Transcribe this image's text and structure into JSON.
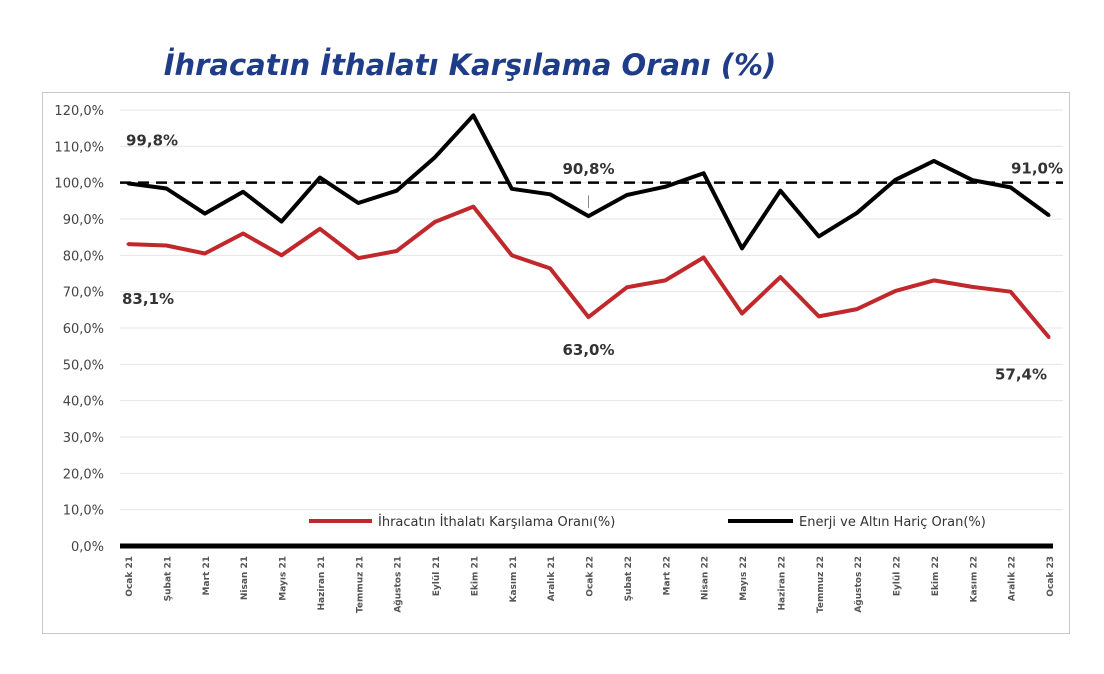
{
  "chart_data": {
    "type": "line",
    "title": "İhracatın İthalatı Karşılama Oranı (%)",
    "categories": [
      "Ocak 21",
      "Şubat 21",
      "Mart 21",
      "Nisan 21",
      "Mayıs 21",
      "Haziran 21",
      "Temmuz 21",
      "Ağustos 21",
      "Eylül 21",
      "Ekim 21",
      "Kasım 21",
      "Aralık 21",
      "Ocak 22",
      "Şubat 22",
      "Mart 22",
      "Nisan 22",
      "Mayıs 22",
      "Haziran 22",
      "Temmuz 22",
      "Ağustos 22",
      "Eylül 22",
      "Ekim 22",
      "Kasım 22",
      "Aralık 22",
      "Ocak 23"
    ],
    "series": [
      {
        "name": "İhracatın İthalatı Karşılama  Oranı(%)",
        "color": "#c0282c",
        "values": [
          83.1,
          82.7,
          80.5,
          86.0,
          80.0,
          87.3,
          79.2,
          81.2,
          89.2,
          93.4,
          80.0,
          76.4,
          63.0,
          71.2,
          73.1,
          79.4,
          64.0,
          74.0,
          63.2,
          65.2,
          70.2,
          73.1,
          71.3,
          70.0,
          57.4
        ]
      },
      {
        "name": "Enerji ve Altın Hariç  Oran(%)",
        "color": "#000000",
        "values": [
          99.8,
          98.4,
          91.5,
          97.5,
          89.3,
          101.4,
          94.4,
          97.8,
          107.0,
          118.5,
          98.3,
          96.8,
          90.8,
          96.6,
          98.9,
          102.6,
          81.9,
          97.8,
          85.2,
          91.7,
          100.8,
          106.0,
          100.7,
          98.7,
          91.0
        ]
      }
    ],
    "reference_line": {
      "value": 100.0,
      "style": "dashed",
      "color": "#000000"
    },
    "y_ticks": [
      "0,0%",
      "10,0%",
      "20,0%",
      "30,0%",
      "40,0%",
      "50,0%",
      "60,0%",
      "70,0%",
      "80,0%",
      "90,0%",
      "100,0%",
      "110,0%",
      "120,0%"
    ],
    "ylim": [
      0,
      120
    ],
    "grid": "horizontal",
    "legend_position": "bottom-right",
    "annotations": [
      {
        "text": "99,8%",
        "series": 1,
        "index": 0
      },
      {
        "text": "83,1%",
        "series": 0,
        "index": 0
      },
      {
        "text": "90,8%",
        "series": 1,
        "index": 12
      },
      {
        "text": "63,0%",
        "series": 0,
        "index": 12
      },
      {
        "text": "91,0%",
        "series": 1,
        "index": 24
      },
      {
        "text": "57,4%",
        "series": 0,
        "index": 24
      }
    ]
  }
}
